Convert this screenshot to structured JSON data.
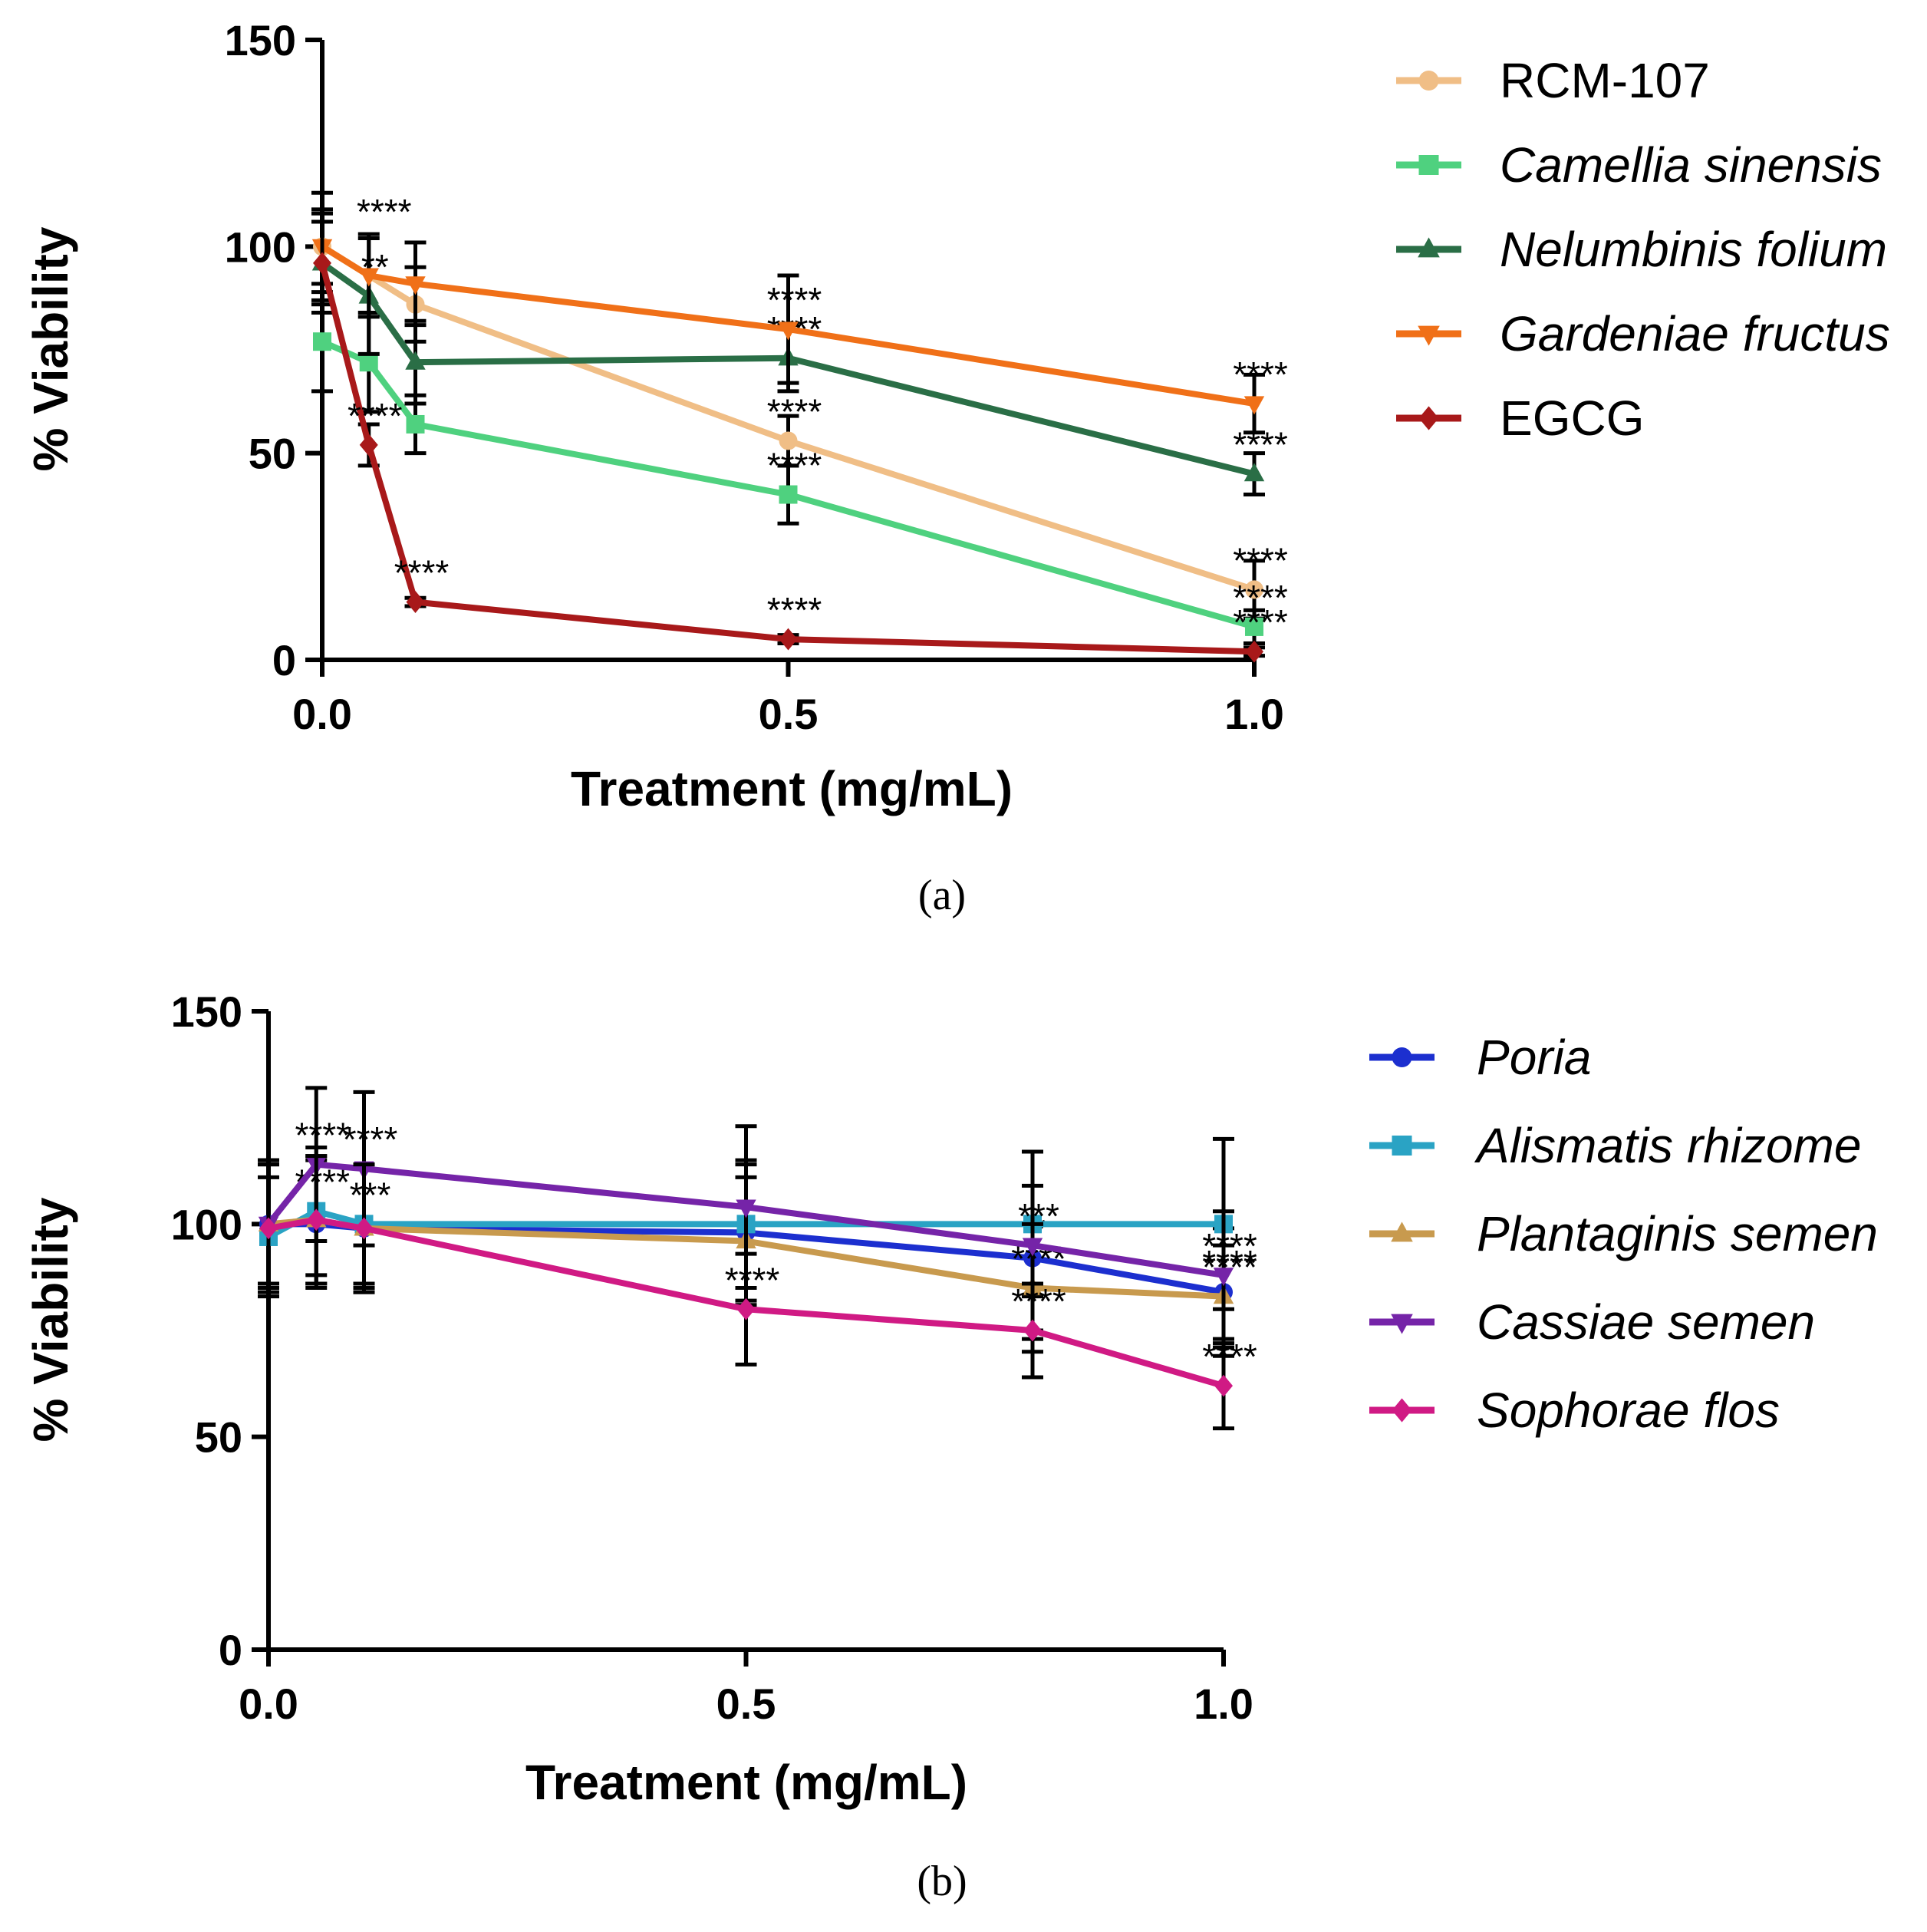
{
  "chart_data": [
    {
      "type": "line",
      "panel": "(a)",
      "xlabel": "Treatment (mg/mL)",
      "ylabel": "% Viability",
      "xlim": [
        0,
        1.0
      ],
      "ylim": [
        0,
        150
      ],
      "xticks": [
        "0.0",
        "0.5",
        "1.0"
      ],
      "yticks": [
        "0",
        "50",
        "100",
        "150"
      ],
      "legend": "top-right",
      "series": [
        {
          "name": "RCM-107",
          "italic": false,
          "color": "#f0be86",
          "marker": "circle",
          "x": [
            0,
            0.1,
            0.5,
            1.0
          ],
          "y": [
            100,
            86,
            53,
            17
          ],
          "err": [
            9,
            9,
            6,
            7
          ],
          "sig": [
            {
              "i": 2,
              "text": "****"
            },
            {
              "i": 3,
              "text": "****"
            }
          ]
        },
        {
          "name": "Camellia sinensis",
          "italic": true,
          "color": "#4fd17f",
          "marker": "square",
          "x": [
            0,
            0.05,
            0.1,
            0.5,
            1.0
          ],
          "y": [
            77,
            72,
            57,
            40,
            8
          ],
          "err": [
            12,
            12,
            7,
            7,
            4
          ],
          "sig": [
            {
              "i": 3,
              "text": "****"
            },
            {
              "i": 4,
              "text": "****"
            }
          ]
        },
        {
          "name": "Nelumbinis folium",
          "italic": true,
          "color": "#2a6e46",
          "marker": "triangle-up",
          "x": [
            0,
            0.05,
            0.1,
            0.5,
            1.0
          ],
          "y": [
            96,
            88,
            72,
            73,
            45
          ],
          "err": [
            12,
            14,
            10,
            8,
            5
          ],
          "sig": [
            {
              "i": 1,
              "text": "**"
            },
            {
              "i": 3,
              "text": "****"
            },
            {
              "i": 4,
              "text": "****"
            }
          ]
        },
        {
          "name": "Gardeniae fructus",
          "italic": true,
          "color": "#f07018",
          "marker": "triangle-down",
          "x": [
            0,
            0.05,
            0.1,
            0.5,
            1.0
          ],
          "y": [
            100,
            93,
            91,
            80,
            62
          ],
          "err": [
            13,
            10,
            10,
            13,
            7
          ],
          "sig": [
            {
              "i": 3,
              "text": "****"
            },
            {
              "i": 4,
              "text": "****"
            }
          ]
        },
        {
          "name": "EGCG",
          "italic": false,
          "color": "#a8191a",
          "marker": "diamond",
          "x": [
            0,
            0.05,
            0.1,
            0.5,
            1.0
          ],
          "y": [
            96,
            52,
            14,
            5,
            2
          ],
          "err": [
            10,
            5,
            1,
            1,
            1
          ],
          "sig": [
            {
              "i": 1,
              "text": "****"
            },
            {
              "i": 2,
              "text": "****"
            },
            {
              "i": 3,
              "text": "****"
            },
            {
              "i": 4,
              "text": "****"
            }
          ]
        }
      ],
      "extra_annotations": [
        {
          "x": 0.05,
          "y": 104,
          "text": "****"
        }
      ]
    },
    {
      "type": "line",
      "panel": "(b)",
      "xlabel": "Treatment (mg/mL)",
      "ylabel": "% Viability",
      "xlim": [
        0,
        1.0
      ],
      "ylim": [
        0,
        150
      ],
      "xticks": [
        "0.0",
        "0.5",
        "1.0"
      ],
      "yticks": [
        "0",
        "50",
        "100",
        "150"
      ],
      "legend": "top-right",
      "series": [
        {
          "name": "Poria",
          "italic": true,
          "color": "#1c2fcf",
          "marker": "circle",
          "x": [
            0,
            0.05,
            0.1,
            0.5,
            0.8,
            1.0
          ],
          "y": [
            100,
            100,
            99,
            98,
            92,
            84
          ],
          "err": [
            15,
            15,
            15,
            16,
            17,
            15
          ],
          "sig": [
            {
              "i": 4,
              "text": "*"
            },
            {
              "i": 5,
              "text": "****"
            }
          ]
        },
        {
          "name": "Alismatis rhizome",
          "italic": true,
          "color": "#2aa3c4",
          "marker": "square",
          "x": [
            0,
            0.05,
            0.1,
            0.5,
            0.8,
            1.0
          ],
          "y": [
            97,
            103,
            100,
            100,
            100,
            100
          ],
          "err": [
            14,
            15,
            14,
            15,
            17,
            20
          ],
          "sig": [
            {
              "i": 1,
              "text": "****"
            },
            {
              "i": 2,
              "text": "***"
            }
          ]
        },
        {
          "name": "Plantaginis semen",
          "italic": true,
          "color": "#c89a4e",
          "marker": "triangle-up",
          "x": [
            0,
            0.05,
            0.1,
            0.5,
            0.8,
            1.0
          ],
          "y": [
            100,
            101,
            99,
            96,
            85,
            83
          ],
          "err": [
            14,
            15,
            14,
            15,
            15,
            12
          ],
          "sig": [
            {
              "i": 4,
              "text": "****"
            },
            {
              "i": 5,
              "text": "****"
            }
          ]
        },
        {
          "name": "Cassiae semen",
          "italic": true,
          "color": "#7524a8",
          "marker": "triangle-down",
          "x": [
            0,
            0.05,
            0.1,
            0.5,
            0.8,
            1.0
          ],
          "y": [
            100,
            114,
            113,
            104,
            95,
            88
          ],
          "err": [
            15,
            18,
            18,
            19,
            22,
            15
          ],
          "sig": [
            {
              "i": 1,
              "text": "****"
            },
            {
              "i": 2,
              "text": "****"
            },
            {
              "i": 4,
              "text": "***"
            },
            {
              "i": 5,
              "text": "****"
            }
          ]
        },
        {
          "name": "Sophorae flos",
          "italic": true,
          "color": "#d01a84",
          "marker": "diamond",
          "x": [
            0,
            0.05,
            0.1,
            0.5,
            0.8,
            1.0
          ],
          "y": [
            99,
            101,
            99,
            80,
            75,
            62
          ],
          "err": [
            15,
            15,
            15,
            13,
            11,
            10
          ],
          "sig": [
            {
              "i": 3,
              "text": "****"
            },
            {
              "i": 4,
              "text": "****"
            },
            {
              "i": 5,
              "text": "****"
            }
          ]
        }
      ],
      "extra_annotations": []
    }
  ]
}
